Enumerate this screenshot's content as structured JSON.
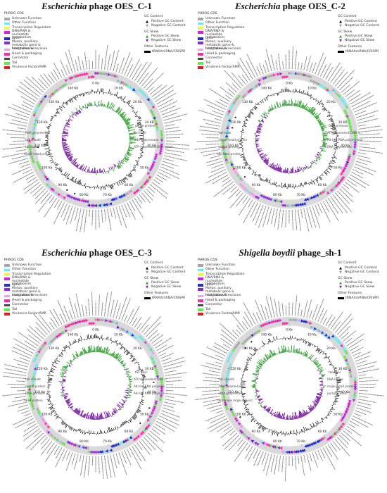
{
  "colors": {
    "unknown": "#a6a6a6",
    "other": "#6fe7f0",
    "transcription": "#f2f24a",
    "dna": "#d61fd6",
    "lysis": "#1f2ad6",
    "moron": "#8e2de0",
    "integration": "#ef9bef",
    "head": "#ff2aa8",
    "connector": "#47474d",
    "tail": "#66e64d",
    "virulence": "#e31a1c",
    "gc_content": "#000000",
    "gc_skew_pos": "#2e9e2e",
    "gc_skew_neg": "#7b1fa2",
    "backbone": "#d9d9d9"
  },
  "legend": {
    "cds_header": "PHROG CDS",
    "cds": [
      {
        "key": "unknown",
        "label": "Unknown Function"
      },
      {
        "key": "other",
        "label": "Other Function"
      },
      {
        "key": "transcription",
        "label": "Transcription Regulation"
      },
      {
        "key": "dna",
        "label": "DNA/RNA & nucleotide metabolism"
      },
      {
        "key": "lysis",
        "label": "Lysis"
      },
      {
        "key": "moron",
        "label": "Moron, auxiliary metabolic gene & host takeover"
      },
      {
        "key": "integration",
        "label": "Integration & excision"
      },
      {
        "key": "head",
        "label": "Head & packaging"
      },
      {
        "key": "connector",
        "label": "Connector"
      },
      {
        "key": "tail",
        "label": "Tail"
      },
      {
        "key": "virulence",
        "label": "Virulence Factor/AMR"
      }
    ],
    "gc_content_header": "GC Content",
    "gc_content_pos": "Positive GC Content",
    "gc_content_neg": "Negative GC Content",
    "gc_skew_header": "GC Skew",
    "gc_skew_pos": "Positive GC Skew",
    "gc_skew_neg": "Negative GC Skew",
    "other_header": "Other Features",
    "other_item": "tRNA/tmRNA/CRISPR"
  },
  "panels": [
    {
      "species": "Escherichia",
      "rest": " phage OES_C-1",
      "ticks": [
        "0 Kb",
        "10 Kb",
        "20 Kb",
        "30 Kb",
        "40 Kb",
        "50 Kb",
        "60 Kb",
        "70 Kb",
        "80 Kb",
        "90 Kb",
        "100 Kb",
        "110 Kb",
        "120 Kb",
        "130 Kb",
        "140 Kb"
      ],
      "inner_labels": [
        "Tail fiber",
        "DNA polymerase",
        "ATP-dependent DNA ligase",
        "RNA polymerase",
        "tail sheath",
        "tail tube",
        "portal protein",
        "major head protein"
      ]
    },
    {
      "species": "Escherichia",
      "rest": " phage OES_C-2",
      "ticks": [
        "0 Kb",
        "10 Kb",
        "20 Kb",
        "30 Kb",
        "40 Kb",
        "50 Kb",
        "60 Kb",
        "70 Kb",
        "80 Kb",
        "90 Kb",
        "100 Kb",
        "110 Kb",
        "120 Kb",
        "130 Kb",
        "140 Kb"
      ],
      "inner_labels": [
        "ATP-dependent DNA li...",
        "Alt-like RNA polymerase",
        "RNA polymerase",
        "tail tube",
        "major head protein",
        "portal protein",
        "DNA primase",
        "tail fiber protein"
      ]
    },
    {
      "species": "Escherichia",
      "rest": " phage OES_C-3",
      "ticks": [
        "0 Kb",
        "10 Kb",
        "20 Kb",
        "30 Kb",
        "40 Kb",
        "50 Kb",
        "60 Kb",
        "70 Kb",
        "80 Kb",
        "90 Kb",
        "100 Kb",
        "110 Kb",
        "120 Kb",
        "130 Kb",
        "140 Kb"
      ],
      "inner_labels": [
        "ATP-dependent DNA l...",
        "Alt-like RNA polymer...",
        "Alt-like RNA polymer...",
        "tail sheath",
        "portal protein",
        "DNA primase",
        "tail fiber",
        "head protein"
      ]
    },
    {
      "species": "Shigella boydii",
      "rest": " phage_sh-1",
      "ticks": [
        "0 Kb",
        "10 Kb",
        "20 Kb",
        "30 Kb",
        "40 Kb",
        "50 Kb",
        "60 Kb",
        "70 Kb",
        "80 Kb",
        "90 Kb",
        "100 Kb",
        "110 Kb",
        "120 Kb",
        "130 Kb",
        "140 Kb"
      ],
      "inner_labels": [
        "RNA ligase",
        "major head protein",
        "portal protein",
        "tail sheath",
        "RNA polymerase",
        "DNA polymerase",
        "tail fiber",
        "terminase large subunit"
      ]
    }
  ]
}
